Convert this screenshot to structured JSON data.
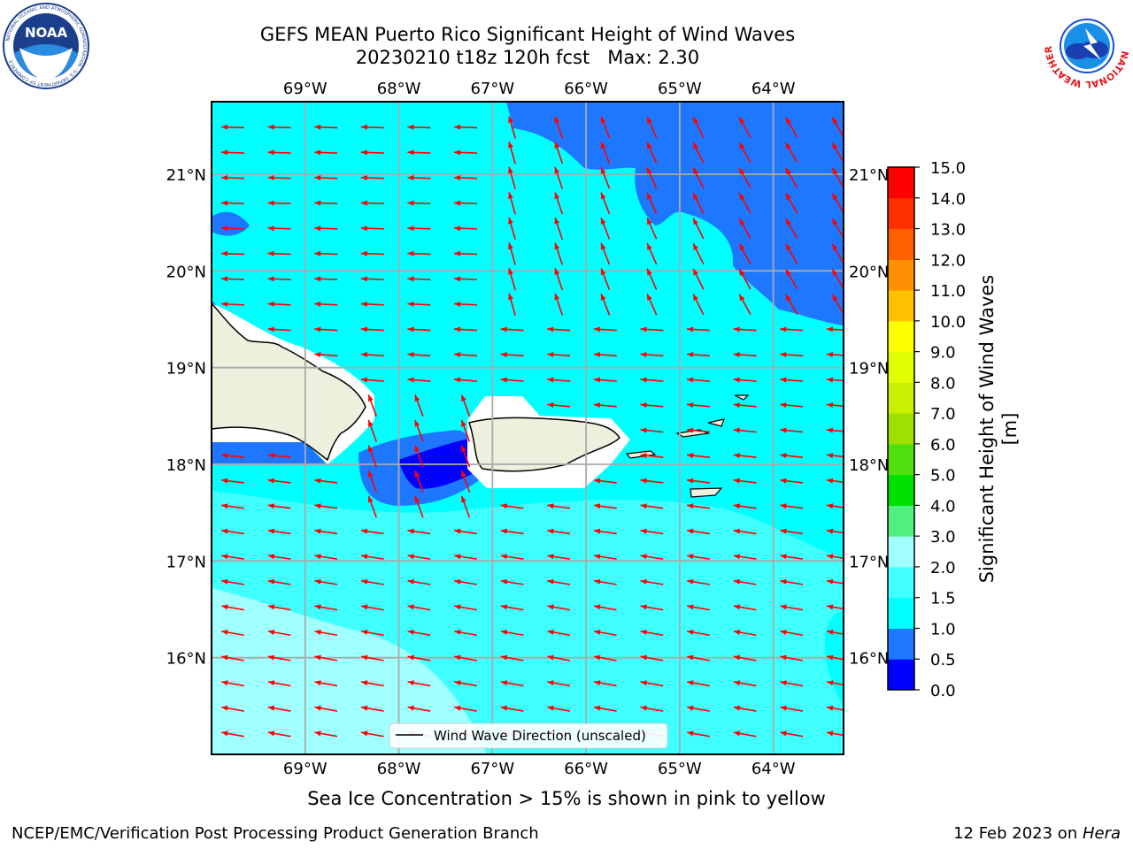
{
  "title": {
    "line1": "GEFS MEAN Puerto Rico Significant Height of Wind Waves",
    "line2": "20230210 t18z 120h fcst   Max: 2.30"
  },
  "map": {
    "lon_labels": [
      "69°W",
      "68°W",
      "67°W",
      "66°W",
      "65°W",
      "64°W"
    ],
    "lon_values": [
      -69,
      -68,
      -67,
      -66,
      -65,
      -64
    ],
    "lat_labels": [
      "21°N",
      "20°N",
      "19°N",
      "18°N",
      "17°N",
      "16°N"
    ],
    "lat_values": [
      21,
      20,
      19,
      18,
      17,
      16
    ],
    "extent": {
      "lon_min": -70,
      "lon_max": -63.25,
      "lat_min": 15,
      "lat_max": 21.75
    },
    "legend_label": "Wind Wave Direction (unscaled)",
    "arrow_color": "#ff0000"
  },
  "colorbar": {
    "label": "Significant Height of Wind Waves [m]",
    "ticks": [
      "0.0",
      "0.5",
      "1.0",
      "1.5",
      "2.0",
      "3.0",
      "4.0",
      "5.0",
      "6.0",
      "7.0",
      "8.0",
      "9.0",
      "10.0",
      "11.0",
      "12.0",
      "13.0",
      "14.0",
      "15.0"
    ],
    "colors": [
      "#0000ff",
      "#1e78ff",
      "#00ffff",
      "#40ffff",
      "#a0ffff",
      "#50f080",
      "#00e000",
      "#50e010",
      "#a0e000",
      "#c8f000",
      "#e0ff00",
      "#ffff00",
      "#ffc000",
      "#ff9000",
      "#ff6000",
      "#ff3000",
      "#ff0000"
    ]
  },
  "note": "Sea Ice Concentration > 15% is shown in pink to yellow",
  "footer": {
    "left": "NCEP/EMC/Verification Post Processing Product Generation Branch",
    "date": "12 Feb 2023 on ",
    "host": "Hera"
  },
  "logos": {
    "noaa": "NOAA",
    "noaa_ring": "NATIONAL OCEANIC AND ATMOSPHERIC ADMINISTRATION · U.S. DEPARTMENT OF COMMERCE",
    "nws_ring": "NATIONAL WEATHER SERVICE"
  }
}
